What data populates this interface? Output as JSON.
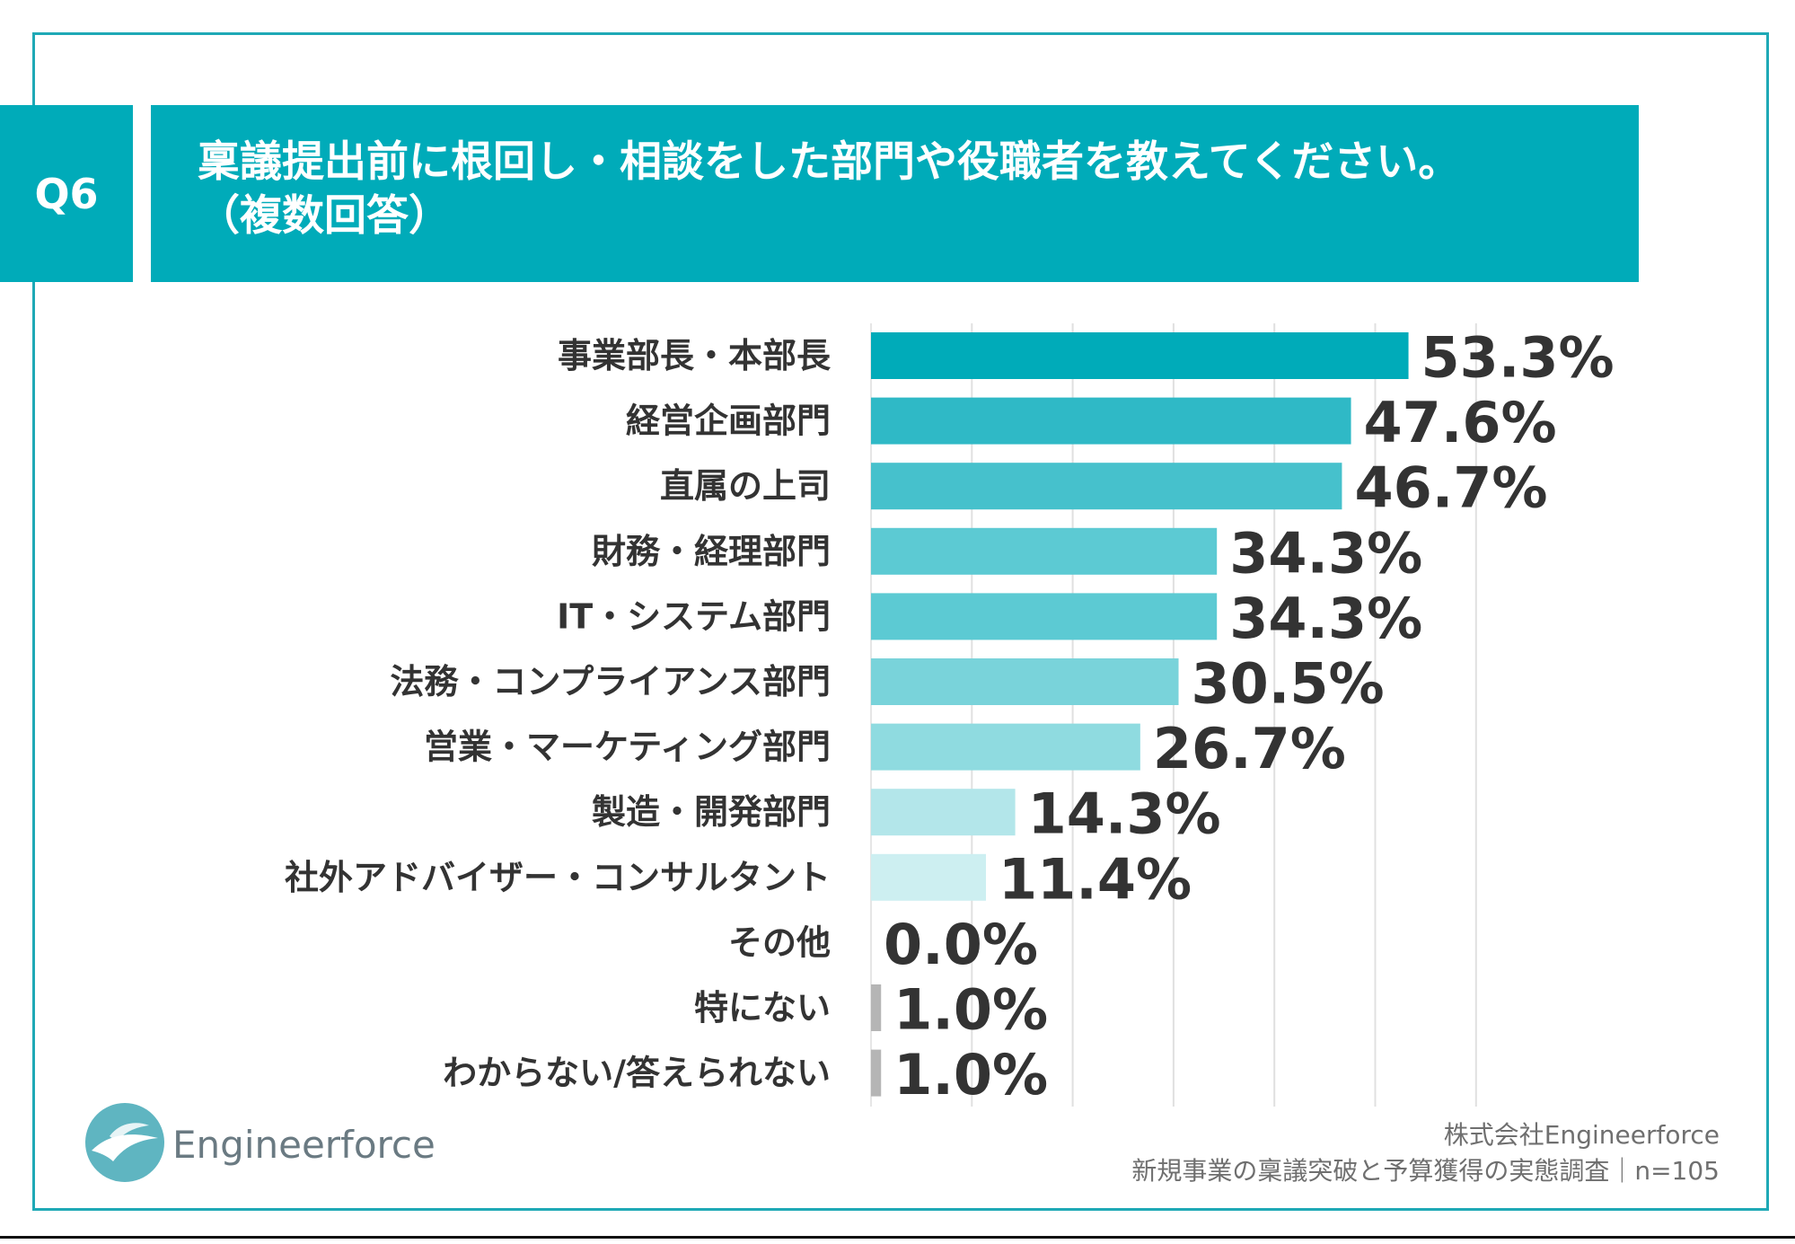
{
  "header": {
    "question_no": "Q6",
    "title_line1": "稟議提出前に根回し・相談をした部門や役職者を教えてください。",
    "title_line2": "（複数回答）"
  },
  "chart_data": {
    "type": "bar",
    "orientation": "horizontal",
    "categories": [
      "事業部長・本部長",
      "経営企画部門",
      "直属の上司",
      "財務・経理部門",
      "IT・システム部門",
      "法務・コンプライアンス部門",
      "営業・マーケティング部門",
      "製造・開発部門",
      "社外アドバイザー・コンサルタント",
      "その他",
      "特にない",
      "わからない/答えられない"
    ],
    "values": [
      53.3,
      47.6,
      46.7,
      34.3,
      34.3,
      30.5,
      26.7,
      14.3,
      11.4,
      0.0,
      1.0,
      1.0
    ],
    "value_labels": [
      "53.3%",
      "47.6%",
      "46.7%",
      "34.3%",
      "34.3%",
      "30.5%",
      "26.7%",
      "14.3%",
      "11.4%",
      "0.0%",
      "1.0%",
      "1.0%"
    ],
    "colors": [
      "#00abb9",
      "#2fb9c6",
      "#46c1cc",
      "#5ccad3",
      "#5ccad3",
      "#79d3da",
      "#8fdbe0",
      "#b3e6ea",
      "#cdeff1",
      "#cdeff1",
      "#b5b5b5",
      "#b5b5b5"
    ],
    "xlim": [
      0,
      60
    ],
    "grid": true
  },
  "footer": {
    "logo_text": "Engineerforce",
    "company": "株式会社Engineerforce",
    "survey": "新規事業の稟議突破と予算獲得の実態調査｜n=105"
  }
}
